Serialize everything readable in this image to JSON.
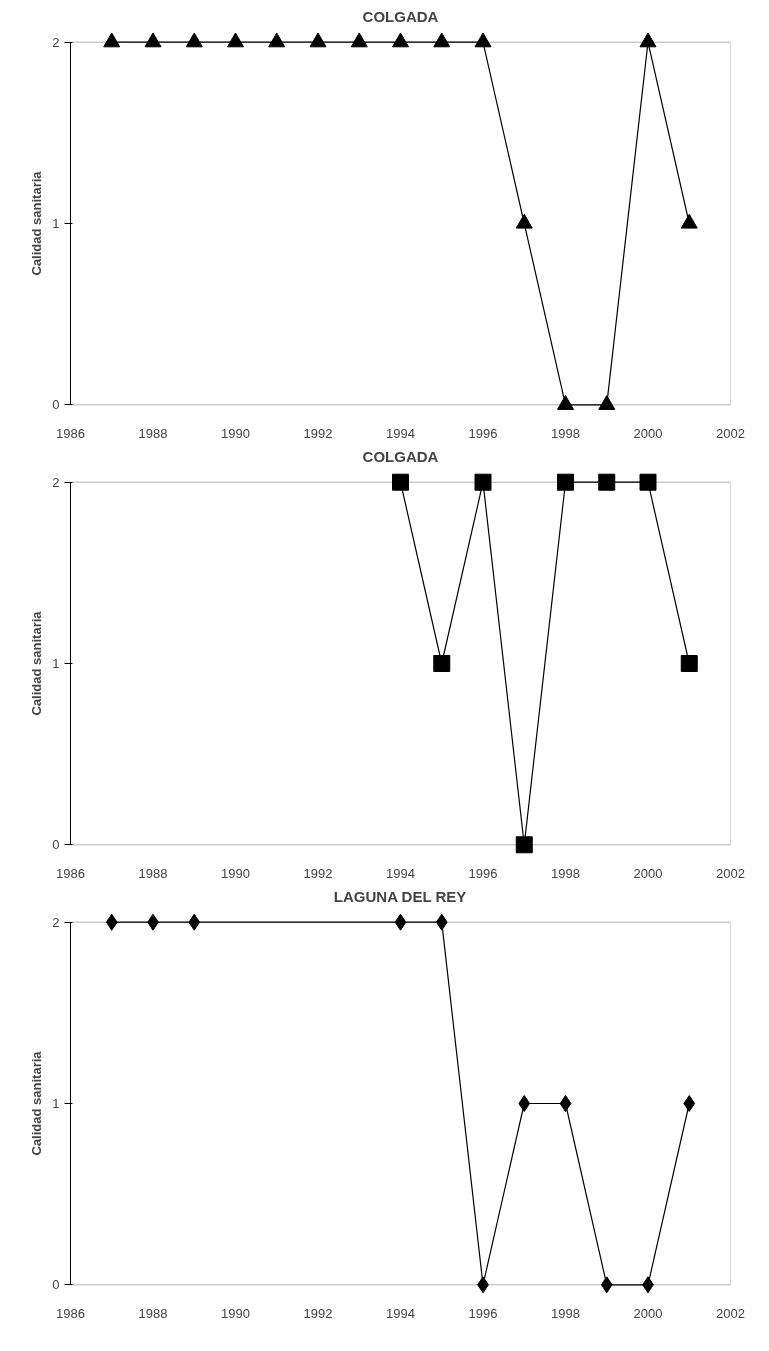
{
  "chart_data": [
    {
      "type": "line",
      "title": "COLGADA",
      "ylabel": "Calidad sanitaria",
      "x": [
        1987,
        1988,
        1989,
        1990,
        1991,
        1992,
        1993,
        1994,
        1995,
        1996,
        1997,
        1998,
        1999,
        2000,
        2001
      ],
      "series": [
        {
          "color": "#000000",
          "values": [
            2,
            2,
            2,
            2,
            2,
            2,
            2,
            2,
            2,
            2,
            1,
            0,
            0,
            2,
            1
          ]
        }
      ],
      "xlim": [
        1986,
        2002
      ],
      "xticks": [
        1986,
        1988,
        1990,
        1992,
        1994,
        1996,
        1998,
        2000,
        2002
      ],
      "ylim": [
        0,
        2
      ],
      "yticks": [
        0,
        1,
        2
      ],
      "marker": "triangle",
      "line_style": "solid",
      "grid": false
    },
    {
      "type": "line",
      "title": "COLGADA",
      "ylabel": "Calidad sanitaria",
      "x": [
        1994,
        1995,
        1996,
        1997,
        1998,
        1999,
        2000,
        2001
      ],
      "series": [
        {
          "color": "#000000",
          "values": [
            2,
            1,
            2,
            0,
            2,
            2,
            2,
            1
          ]
        }
      ],
      "xlim": [
        1986,
        2002
      ],
      "xticks": [
        1986,
        1988,
        1990,
        1992,
        1994,
        1996,
        1998,
        2000,
        2002
      ],
      "ylim": [
        0,
        2
      ],
      "yticks": [
        0,
        1,
        2
      ],
      "marker": "square",
      "line_style": "solid",
      "grid": false
    },
    {
      "type": "line",
      "title": "LAGUNA DEL REY",
      "ylabel": "Calidad sanitaria",
      "x": [
        1987,
        1988,
        1989,
        1994,
        1995,
        1996,
        1997,
        1998,
        1999,
        2000,
        2001
      ],
      "series": [
        {
          "color": "#000000",
          "values": [
            2,
            2,
            2,
            2,
            2,
            0,
            1,
            1,
            0,
            0,
            1
          ]
        }
      ],
      "xlim": [
        1986,
        2002
      ],
      "xticks": [
        1986,
        1988,
        1990,
        1992,
        1994,
        1996,
        1998,
        2000,
        2002
      ],
      "ylim": [
        0,
        2
      ],
      "yticks": [
        0,
        1,
        2
      ],
      "marker": "diamond",
      "line_style": "solid",
      "grid": false
    }
  ]
}
